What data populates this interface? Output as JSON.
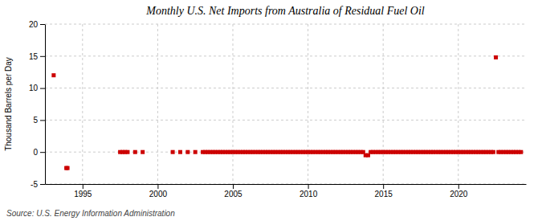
{
  "chart_data": {
    "type": "scatter",
    "title": "Monthly U.S. Net Imports from Australia of Residual Fuel Oil",
    "ylabel": "Thousand Barrels per Day",
    "annotations": [
      "Source: U.S. Energy Information Administration"
    ],
    "color": "#cc0000",
    "marker": "square",
    "grid": true,
    "xlim": [
      1992.5,
      2024.5
    ],
    "xticks": [
      1995,
      2000,
      2005,
      2010,
      2015,
      2020
    ],
    "ylim": [
      -5,
      20
    ],
    "yticks": [
      -5,
      0,
      5,
      10,
      15,
      20
    ],
    "x": [
      1993.08,
      1993.92,
      1994.0,
      1997.5,
      1997.67,
      1997.83,
      1998.0,
      1998.5,
      1999.0,
      2001.0,
      2001.5,
      2002.0,
      2002.5,
      2003.0,
      2003.17,
      2003.33,
      2003.5,
      2003.67,
      2003.83,
      2004.0,
      2004.17,
      2004.33,
      2004.5,
      2004.67,
      2004.83,
      2005.0,
      2005.17,
      2005.33,
      2005.5,
      2005.67,
      2005.83,
      2006.0,
      2006.17,
      2006.33,
      2006.5,
      2006.67,
      2006.83,
      2007.0,
      2007.17,
      2007.33,
      2007.5,
      2007.67,
      2007.83,
      2008.0,
      2008.17,
      2008.33,
      2008.5,
      2008.67,
      2008.83,
      2009.0,
      2009.17,
      2009.33,
      2009.5,
      2009.67,
      2009.83,
      2010.0,
      2010.17,
      2010.33,
      2010.5,
      2010.67,
      2010.83,
      2011.0,
      2011.17,
      2011.33,
      2011.5,
      2011.67,
      2011.83,
      2012.0,
      2012.17,
      2012.33,
      2012.5,
      2012.67,
      2012.83,
      2013.0,
      2013.17,
      2013.33,
      2013.5,
      2013.67,
      2013.83,
      2014.0,
      2014.17,
      2014.33,
      2014.5,
      2014.67,
      2014.83,
      2015.0,
      2015.17,
      2015.33,
      2015.5,
      2015.67,
      2015.83,
      2016.0,
      2016.17,
      2016.33,
      2016.5,
      2016.67,
      2016.83,
      2017.0,
      2017.17,
      2017.33,
      2017.5,
      2017.67,
      2017.83,
      2018.0,
      2018.17,
      2018.33,
      2018.5,
      2018.67,
      2018.83,
      2019.0,
      2019.17,
      2019.33,
      2019.5,
      2019.67,
      2019.83,
      2020.0,
      2020.17,
      2020.33,
      2020.5,
      2020.67,
      2020.83,
      2021.0,
      2021.17,
      2021.33,
      2021.5,
      2021.67,
      2021.83,
      2022.0,
      2022.17,
      2022.33,
      2022.5,
      2022.67,
      2022.83,
      2023.0,
      2023.17,
      2023.33,
      2023.5,
      2023.67,
      2023.83,
      2024.0,
      2024.17
    ],
    "values": [
      12.0,
      -2.5,
      -2.5,
      0.0,
      0.0,
      0.0,
      0.0,
      0.0,
      0.0,
      0.0,
      0.0,
      0.0,
      0.0,
      0.0,
      0.0,
      0.0,
      0.0,
      0.0,
      0.0,
      0.0,
      0.0,
      0.0,
      0.0,
      0.0,
      0.0,
      0.0,
      0.0,
      0.0,
      0.0,
      0.0,
      0.0,
      0.0,
      0.0,
      0.0,
      0.0,
      0.0,
      0.0,
      0.0,
      0.0,
      0.0,
      0.0,
      0.0,
      0.0,
      0.0,
      0.0,
      0.0,
      0.0,
      0.0,
      0.0,
      0.0,
      0.0,
      0.0,
      0.0,
      0.0,
      0.0,
      0.0,
      0.0,
      0.0,
      0.0,
      0.0,
      0.0,
      0.0,
      0.0,
      0.0,
      0.0,
      0.0,
      0.0,
      0.0,
      0.0,
      0.0,
      0.0,
      0.0,
      0.0,
      0.0,
      0.0,
      0.0,
      0.0,
      0.0,
      -0.5,
      -0.5,
      0.0,
      0.0,
      0.0,
      0.0,
      0.0,
      0.0,
      0.0,
      0.0,
      0.0,
      0.0,
      0.0,
      0.0,
      0.0,
      0.0,
      0.0,
      0.0,
      0.0,
      0.0,
      0.0,
      0.0,
      0.0,
      0.0,
      0.0,
      0.0,
      0.0,
      0.0,
      0.0,
      0.0,
      0.0,
      0.0,
      0.0,
      0.0,
      0.0,
      0.0,
      0.0,
      0.0,
      0.0,
      0.0,
      0.0,
      0.0,
      0.0,
      0.0,
      0.0,
      0.0,
      0.0,
      0.0,
      0.0,
      0.0,
      0.0,
      0.0,
      14.8,
      0.0,
      0.0,
      0.0,
      0.0,
      0.0,
      0.0,
      0.0,
      0.0,
      0.0,
      0.0
    ]
  }
}
